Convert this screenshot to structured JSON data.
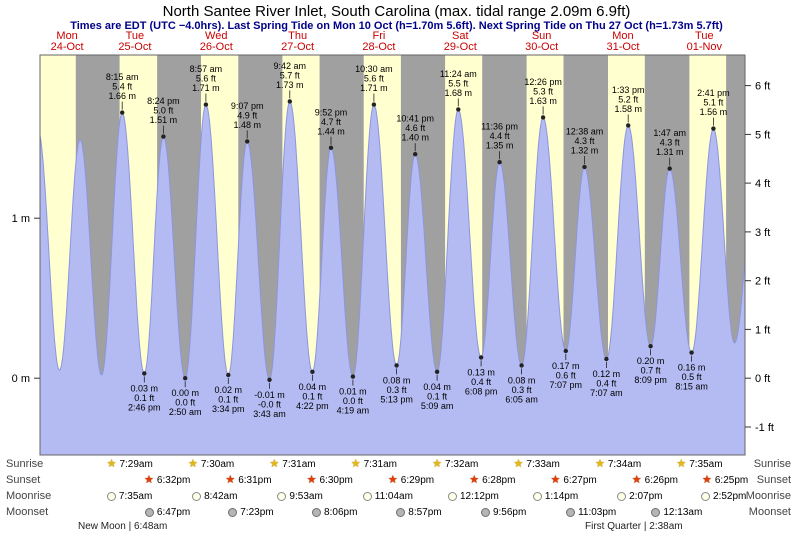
{
  "header": {
    "title": "North Santee River Inlet, South Carolina (max. tidal range 2.09m 6.9ft)",
    "subtitle": "Times are EDT (UTC −4.0hrs). Last Spring Tide on Mon 10 Oct (h=1.70m 5.6ft). Next Spring Tide on Thu 27 Oct (h=1.73m 5.7ft)"
  },
  "chart_data": {
    "type": "area",
    "title": "North Santee River Inlet tide curve",
    "xlim_hours": [
      8,
      216
    ],
    "ylim_m": [
      -0.48,
      2.02
    ],
    "grid": false,
    "days": [
      {
        "name": "Mon",
        "date": "24-Oct"
      },
      {
        "name": "Tue",
        "date": "25-Oct"
      },
      {
        "name": "Wed",
        "date": "26-Oct"
      },
      {
        "name": "Thu",
        "date": "27-Oct"
      },
      {
        "name": "Fri",
        "date": "28-Oct"
      },
      {
        "name": "Sat",
        "date": "29-Oct"
      },
      {
        "name": "Sun",
        "date": "30-Oct"
      },
      {
        "name": "Mon",
        "date": "31-Oct"
      },
      {
        "name": "Tue",
        "date": "01-Nov"
      }
    ],
    "y_axis_left": [
      {
        "label": "1 m",
        "value": 1
      },
      {
        "label": "0 m",
        "value": 0
      }
    ],
    "y_axis_right": [
      {
        "label": "6 ft",
        "value": 6
      },
      {
        "label": "5 ft",
        "value": 5
      },
      {
        "label": "4 ft",
        "value": 4
      },
      {
        "label": "3 ft",
        "value": 3
      },
      {
        "label": "2 ft",
        "value": 2
      },
      {
        "label": "1 ft",
        "value": 1
      },
      {
        "label": "0 ft",
        "value": 0
      },
      {
        "label": "-1 ft",
        "value": -1
      }
    ],
    "tide_events": [
      {
        "type": "high",
        "labeled": false,
        "t": 7.42,
        "height_m": 1.55
      },
      {
        "type": "low",
        "labeled": false,
        "t": 13.75,
        "height_m": 0.05
      },
      {
        "type": "high",
        "labeled": false,
        "t": 19.83,
        "height_m": 1.49
      },
      {
        "type": "low",
        "labeled": false,
        "t": 26.17,
        "height_m": 0.02
      },
      {
        "type": "high",
        "labeled": true,
        "day": 1,
        "time": "8:15 am",
        "height_m": 1.66,
        "ft": "5.4 ft",
        "m": "1.66 m"
      },
      {
        "type": "low",
        "labeled": true,
        "day": 1,
        "time": "2:46 pm",
        "height_m": 0.03,
        "ft": "0.1 ft",
        "m": "0.03 m"
      },
      {
        "type": "high",
        "labeled": true,
        "day": 1,
        "time": "8:24 pm",
        "height_m": 1.51,
        "ft": "5.0 ft",
        "m": "1.51 m"
      },
      {
        "type": "low",
        "labeled": true,
        "day": 2,
        "time": "2:50 am",
        "height_m": 0.0,
        "ft": "0.0 ft",
        "m": "0.00 m"
      },
      {
        "type": "high",
        "labeled": true,
        "day": 2,
        "time": "8:57 am",
        "height_m": 1.71,
        "ft": "5.6 ft",
        "m": "1.71 m"
      },
      {
        "type": "low",
        "labeled": true,
        "day": 2,
        "time": "3:34 pm",
        "height_m": 0.02,
        "ft": "0.1 ft",
        "m": "0.02 m"
      },
      {
        "type": "high",
        "labeled": true,
        "day": 2,
        "time": "9:07 pm",
        "height_m": 1.48,
        "ft": "4.9 ft",
        "m": "1.48 m"
      },
      {
        "type": "low",
        "labeled": true,
        "day": 3,
        "time": "3:43 am",
        "height_m": -0.01,
        "ft": "-0.0 ft",
        "m": "-0.01 m"
      },
      {
        "type": "high",
        "labeled": true,
        "day": 3,
        "time": "9:42 am",
        "height_m": 1.73,
        "ft": "5.7 ft",
        "m": "1.73 m"
      },
      {
        "type": "low",
        "labeled": true,
        "day": 3,
        "time": "4:22 pm",
        "height_m": 0.04,
        "ft": "0.1 ft",
        "m": "0.04 m"
      },
      {
        "type": "high",
        "labeled": true,
        "day": 3,
        "time": "9:52 pm",
        "height_m": 1.44,
        "ft": "4.7 ft",
        "m": "1.44 m"
      },
      {
        "type": "low",
        "labeled": true,
        "day": 4,
        "time": "4:19 am",
        "height_m": 0.01,
        "ft": "0.0 ft",
        "m": "0.01 m"
      },
      {
        "type": "high",
        "labeled": true,
        "day": 4,
        "time": "10:30 am",
        "height_m": 1.71,
        "ft": "5.6 ft",
        "m": "1.71 m"
      },
      {
        "type": "low",
        "labeled": true,
        "day": 4,
        "time": "5:13 pm",
        "height_m": 0.08,
        "ft": "0.3 ft",
        "m": "0.08 m"
      },
      {
        "type": "high",
        "labeled": true,
        "day": 4,
        "time": "10:41 pm",
        "height_m": 1.4,
        "ft": "4.6 ft",
        "m": "1.40 m"
      },
      {
        "type": "low",
        "labeled": true,
        "day": 5,
        "time": "5:09 am",
        "height_m": 0.04,
        "ft": "0.1 ft",
        "m": "0.04 m"
      },
      {
        "type": "high",
        "labeled": true,
        "day": 5,
        "time": "11:24 am",
        "height_m": 1.68,
        "ft": "5.5 ft",
        "m": "1.68 m"
      },
      {
        "type": "low",
        "labeled": true,
        "day": 5,
        "time": "6:08 pm",
        "height_m": 0.13,
        "ft": "0.4 ft",
        "m": "0.13 m"
      },
      {
        "type": "high",
        "labeled": true,
        "day": 5,
        "time": "11:36 pm",
        "height_m": 1.35,
        "ft": "4.4 ft",
        "m": "1.35 m"
      },
      {
        "type": "low",
        "labeled": true,
        "day": 6,
        "time": "6:05 am",
        "height_m": 0.08,
        "ft": "0.3 ft",
        "m": "0.08 m"
      },
      {
        "type": "high",
        "labeled": true,
        "day": 6,
        "time": "12:26 pm",
        "height_m": 1.63,
        "ft": "5.3 ft",
        "m": "1.63 m"
      },
      {
        "type": "low",
        "labeled": true,
        "day": 6,
        "time": "7:07 pm",
        "height_m": 0.17,
        "ft": "0.6 ft",
        "m": "0.17 m"
      },
      {
        "type": "high",
        "labeled": true,
        "day": 7,
        "time": "12:38 am",
        "height_m": 1.32,
        "ft": "4.3 ft",
        "m": "1.32 m"
      },
      {
        "type": "low",
        "labeled": true,
        "day": 7,
        "time": "7:07 am",
        "height_m": 0.12,
        "ft": "0.4 ft",
        "m": "0.12 m"
      },
      {
        "type": "high",
        "labeled": true,
        "day": 7,
        "time": "1:33 pm",
        "height_m": 1.58,
        "ft": "5.2 ft",
        "m": "1.58 m"
      },
      {
        "type": "low",
        "labeled": true,
        "day": 7,
        "time": "8:09 pm",
        "height_m": 0.2,
        "ft": "0.7 ft",
        "m": "0.20 m"
      },
      {
        "type": "high",
        "labeled": true,
        "day": 8,
        "time": "1:47 am",
        "height_m": 1.31,
        "ft": "4.3 ft",
        "m": "1.31 m"
      },
      {
        "type": "low",
        "labeled": true,
        "day": 8,
        "time": "8:15 am",
        "height_m": 0.16,
        "ft": "0.5 ft",
        "m": "0.16 m"
      },
      {
        "type": "high",
        "labeled": true,
        "day": 8,
        "time": "2:41 pm",
        "height_m": 1.56,
        "ft": "5.1 ft",
        "m": "1.56 m"
      },
      {
        "type": "low",
        "labeled": false,
        "t": 212.92,
        "height_m": 0.22
      },
      {
        "type": "high",
        "labeled": false,
        "t": 219.08,
        "height_m": 1.28
      }
    ],
    "colors": {
      "night": "#a0a0a0",
      "day": "#ffffcf",
      "tide": "#b3bbf2",
      "tide_edge": "#8d96dd",
      "day_label": "#cc0000",
      "subtitle": "#00008b"
    }
  },
  "astro": {
    "rows": [
      {
        "id": "sunrise",
        "label": "Sunrise",
        "icon": "sunrise-star-icon",
        "events": [
          {
            "day": 1,
            "time": "7:29am"
          },
          {
            "day": 2,
            "time": "7:30am"
          },
          {
            "day": 3,
            "time": "7:31am"
          },
          {
            "day": 4,
            "time": "7:31am"
          },
          {
            "day": 5,
            "time": "7:32am"
          },
          {
            "day": 6,
            "time": "7:33am"
          },
          {
            "day": 7,
            "time": "7:34am"
          },
          {
            "day": 8,
            "time": "7:35am"
          }
        ]
      },
      {
        "id": "sunset",
        "label": "Sunset",
        "icon": "sunset-star-icon",
        "events": [
          {
            "day": 1,
            "time": "6:32pm"
          },
          {
            "day": 2,
            "time": "6:31pm"
          },
          {
            "day": 3,
            "time": "6:30pm"
          },
          {
            "day": 4,
            "time": "6:29pm"
          },
          {
            "day": 5,
            "time": "6:28pm"
          },
          {
            "day": 6,
            "time": "6:27pm"
          },
          {
            "day": 7,
            "time": "6:26pm"
          },
          {
            "day": 8,
            "time": "6:25pm"
          }
        ]
      },
      {
        "id": "moonrise",
        "label": "Moonrise",
        "icon": "moonrise-circle-icon",
        "events": [
          {
            "day": 1,
            "time": "7:35am"
          },
          {
            "day": 2,
            "time": "8:42am"
          },
          {
            "day": 3,
            "time": "9:53am"
          },
          {
            "day": 4,
            "time": "11:04am"
          },
          {
            "day": 5,
            "time": "12:12pm"
          },
          {
            "day": 6,
            "time": "1:14pm"
          },
          {
            "day": 7,
            "time": "2:07pm"
          },
          {
            "day": 8,
            "time": "2:52pm"
          }
        ]
      },
      {
        "id": "moonset",
        "label": "Moonset",
        "icon": "moonset-circle-icon",
        "events": [
          {
            "day": 1,
            "time": "6:47pm"
          },
          {
            "day": 2,
            "time": "7:23pm"
          },
          {
            "day": 3,
            "time": "8:06pm"
          },
          {
            "day": 4,
            "time": "8:57pm"
          },
          {
            "day": 5,
            "time": "9:56pm"
          },
          {
            "day": 6,
            "time": "11:03pm"
          },
          {
            "day": 8,
            "time": "12:13am"
          }
        ]
      }
    ],
    "phases": [
      {
        "text": "New Moon | 6:48am"
      },
      {
        "text": "First Quarter | 2:38am"
      }
    ]
  }
}
